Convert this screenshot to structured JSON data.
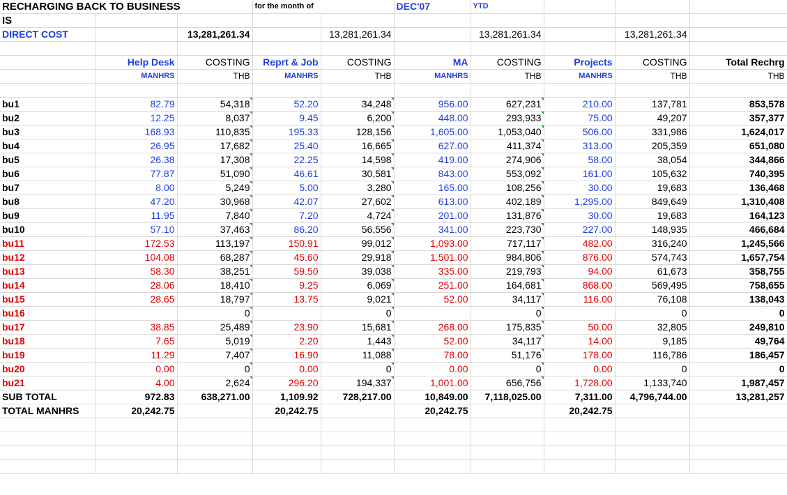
{
  "sheet": {
    "title": "RECHARGING BACK TO BUSINESS",
    "title2": "IS",
    "month_label": "for the month of",
    "month": "DEC'07",
    "ytd": "YTD",
    "direct_cost_label": "DIRECT COST",
    "direct_cost_values": [
      "13,281,261.34",
      "13,281,261.34",
      "13,281,261.34",
      "13,281,261.34"
    ]
  },
  "header": {
    "groups": [
      "Help Desk",
      "COSTING",
      "Reprt & Job",
      "COSTING",
      "MA",
      "COSTING",
      "Projects",
      "COSTING",
      "Total Rechrg"
    ],
    "units": [
      "MANHRS",
      "THB",
      "MANHRS",
      "THB",
      "MANHRS",
      "THB",
      "MANHRS",
      "THB",
      "THB"
    ]
  },
  "rows": [
    {
      "name": "bu1",
      "vals": [
        "82.79",
        "54,318",
        "52.20",
        "34,248",
        "956.00",
        "627,231",
        "210.00",
        "137,781",
        "853,578"
      ]
    },
    {
      "name": "bu2",
      "vals": [
        "12.25",
        "8,037",
        "9.45",
        "6,200",
        "448.00",
        "293,933",
        "75.00",
        "49,207",
        "357,377"
      ]
    },
    {
      "name": "bu3",
      "vals": [
        "168.93",
        "110,835",
        "195.33",
        "128,156",
        "1,605.00",
        "1,053,040",
        "506.00",
        "331,986",
        "1,624,017"
      ]
    },
    {
      "name": "bu4",
      "vals": [
        "26.95",
        "17,682",
        "25.40",
        "16,665",
        "627.00",
        "411,374",
        "313.00",
        "205,359",
        "651,080"
      ]
    },
    {
      "name": "bu5",
      "vals": [
        "26.38",
        "17,308",
        "22.25",
        "14,598",
        "419.00",
        "274,906",
        "58.00",
        "38,054",
        "344,866"
      ]
    },
    {
      "name": "bu6",
      "vals": [
        "77.87",
        "51,090",
        "46.61",
        "30,581",
        "843.00",
        "553,092",
        "161.00",
        "105,632",
        "740,395"
      ]
    },
    {
      "name": "bu7",
      "vals": [
        "8.00",
        "5,249",
        "5.00",
        "3,280",
        "165.00",
        "108,256",
        "30.00",
        "19,683",
        "136,468"
      ]
    },
    {
      "name": "bu8",
      "vals": [
        "47.20",
        "30,968",
        "42.07",
        "27,602",
        "613.00",
        "402,189",
        "1,295.00",
        "849,649",
        "1,310,408"
      ]
    },
    {
      "name": "bu9",
      "vals": [
        "11.95",
        "7,840",
        "7.20",
        "4,724",
        "201.00",
        "131,876",
        "30.00",
        "19,683",
        "164,123"
      ]
    },
    {
      "name": "bu10",
      "vals": [
        "57.10",
        "37,463",
        "86.20",
        "56,556",
        "341.00",
        "223,730",
        "227.00",
        "148,935",
        "466,684"
      ]
    },
    {
      "name": "bu11",
      "vals": [
        "172.53",
        "113,197",
        "150.91",
        "99,012",
        "1,093.00",
        "717,117",
        "482.00",
        "316,240",
        "1,245,566"
      ]
    },
    {
      "name": "bu12",
      "vals": [
        "104.08",
        "68,287",
        "45.60",
        "29,918",
        "1,501.00",
        "984,806",
        "876.00",
        "574,743",
        "1,657,754"
      ]
    },
    {
      "name": "bu13",
      "vals": [
        "58.30",
        "38,251",
        "59.50",
        "39,038",
        "335.00",
        "219,793",
        "94.00",
        "61,673",
        "358,755"
      ]
    },
    {
      "name": "bu14",
      "vals": [
        "28.06",
        "18,410",
        "9.25",
        "6,069",
        "251.00",
        "164,681",
        "868.00",
        "569,495",
        "758,655"
      ]
    },
    {
      "name": "bu15",
      "vals": [
        "28.65",
        "18,797",
        "13.75",
        "9,021",
        "52.00",
        "34,117",
        "116.00",
        "76,108",
        "138,043"
      ]
    },
    {
      "name": "bu16",
      "vals": [
        "",
        "0",
        "",
        "0",
        "",
        "0",
        "",
        "0",
        "0"
      ]
    },
    {
      "name": "bu17",
      "vals": [
        "38.85",
        "25,489",
        "23.90",
        "15,681",
        "268.00",
        "175,835",
        "50.00",
        "32,805",
        "249,810"
      ]
    },
    {
      "name": "bu18",
      "vals": [
        "7.65",
        "5,019",
        "2.20",
        "1,443",
        "52.00",
        "34,117",
        "14.00",
        "9,185",
        "49,764"
      ]
    },
    {
      "name": "bu19",
      "vals": [
        "11.29",
        "7,407",
        "16.90",
        "11,088",
        "78.00",
        "51,176",
        "178.00",
        "116,786",
        "186,457"
      ]
    },
    {
      "name": "bu20",
      "vals": [
        "0.00",
        "0",
        "0.00",
        "0",
        "0.00",
        "0",
        "0.00",
        "0",
        "0"
      ]
    },
    {
      "name": "bu21",
      "vals": [
        "4.00",
        "2,624",
        "296.20",
        "194,337",
        "1,001.00",
        "656,756",
        "1,728.00",
        "1,133,740",
        "1,987,457"
      ]
    }
  ],
  "subtotal": {
    "label": "SUB TOTAL",
    "vals": [
      "972.83",
      "638,271.00",
      "1,109.92",
      "728,217.00",
      "10,849.00",
      "7,118,025.00",
      "7,311.00",
      "4,796,744.00",
      "13,281,257"
    ]
  },
  "total_manhrs": {
    "label": "TOTAL MANHRS",
    "vals": [
      "20,242.75",
      "",
      "20,242.75",
      "",
      "20,242.75",
      "",
      "20,242.75",
      "",
      ""
    ]
  },
  "colors": {
    "blue": "#1f3fe0",
    "red": "#e00000",
    "gridline": "#d9d9d9",
    "comment_marker": "#2e9e2e"
  }
}
